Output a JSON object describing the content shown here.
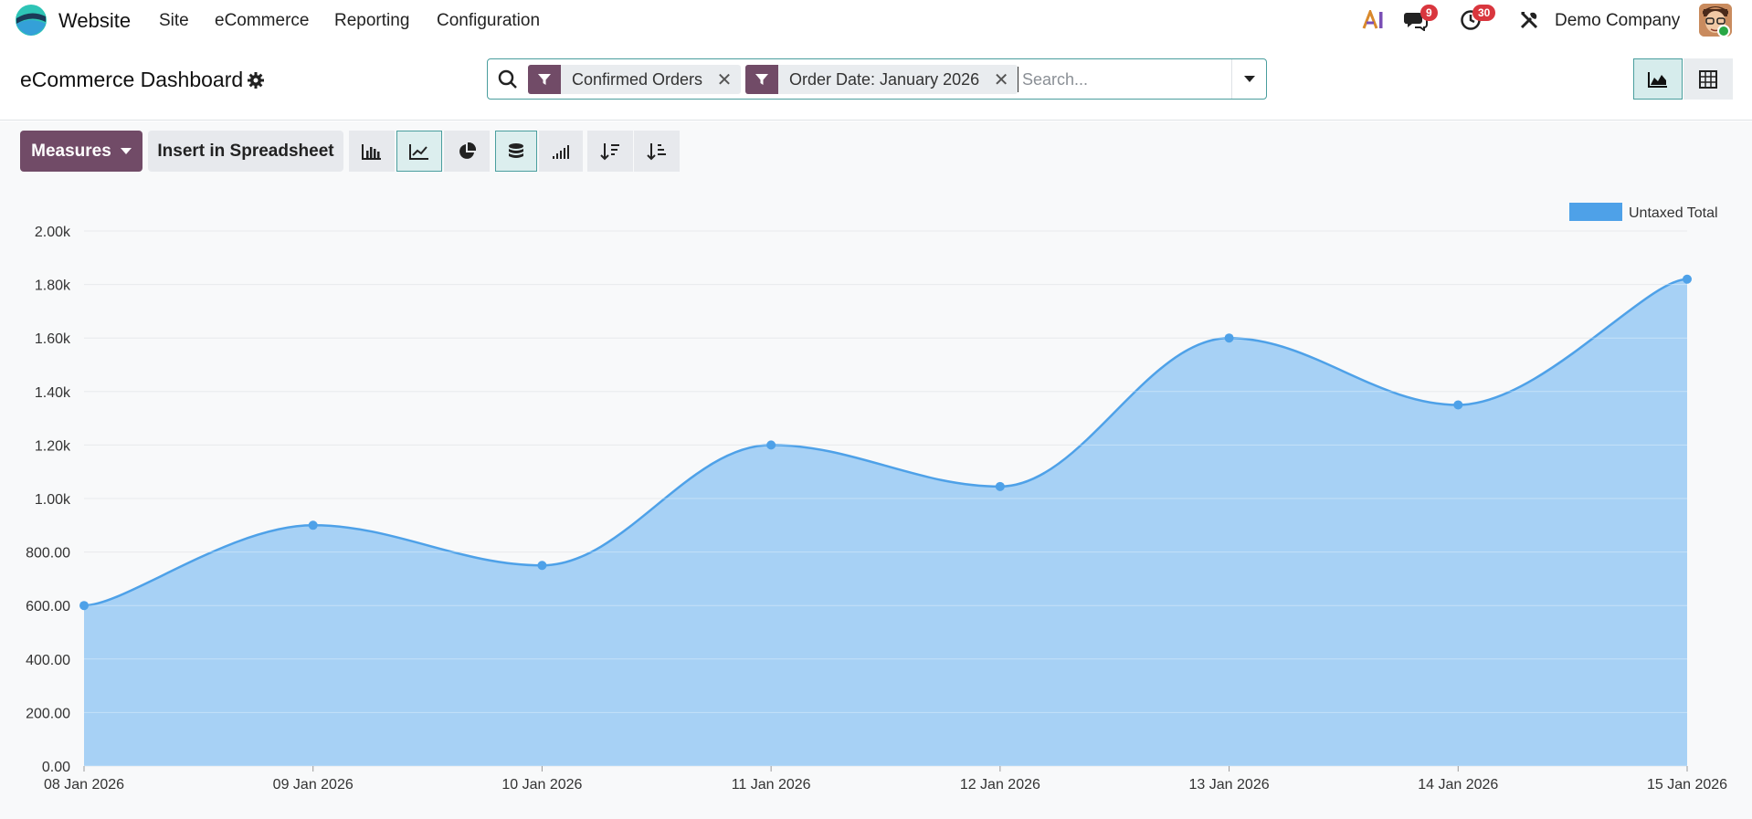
{
  "navbar": {
    "app_name": "Website",
    "menu": [
      "Site",
      "eCommerce",
      "Reporting",
      "Configuration"
    ],
    "ai_label": "AI",
    "messages_count": "9",
    "activities_count": "30",
    "company": "Demo Company"
  },
  "control_panel": {
    "title": "eCommerce Dashboard",
    "facets": [
      "Confirmed Orders",
      "Order Date: January 2026"
    ],
    "search_placeholder": "Search..."
  },
  "toolbar": {
    "measures_label": "Measures",
    "insert_label": "Insert in Spreadsheet"
  },
  "colors": {
    "brand": "#714b67",
    "series_line": "#4ea1e8",
    "series_fill": "#a7d1f5",
    "active_border": "#4a9e9e",
    "badge": "#d9363e"
  },
  "chart_data": {
    "type": "area",
    "categories": [
      "08 Jan 2026",
      "09 Jan 2026",
      "10 Jan 2026",
      "11 Jan 2026",
      "12 Jan 2026",
      "13 Jan 2026",
      "14 Jan 2026",
      "15 Jan 2026"
    ],
    "series": [
      {
        "name": "Untaxed Total",
        "values": [
          600,
          900,
          750,
          1200,
          1045,
          1600,
          1350,
          1820
        ]
      }
    ],
    "ylim": [
      0,
      2000
    ],
    "yticks": [
      "0.00",
      "200.00",
      "400.00",
      "600.00",
      "800.00",
      "1.00k",
      "1.20k",
      "1.40k",
      "1.60k",
      "1.80k",
      "2.00k"
    ],
    "grid": true,
    "legend": "top-right"
  }
}
